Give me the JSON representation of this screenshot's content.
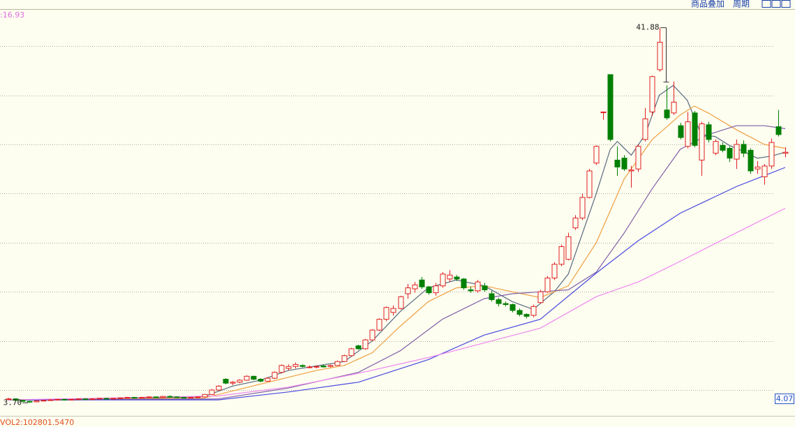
{
  "chart_data": {
    "type": "candlestick",
    "toolbar": [
      "商品叠加",
      "周期"
    ],
    "ma_label": ":16.93",
    "ylim": [
      2.8,
      43.7
    ],
    "gridlines": [
      5,
      10,
      15,
      20,
      25,
      30,
      35,
      40
    ],
    "grid": true,
    "up_color": "#e02020",
    "down_color": "#008000",
    "candles": [
      [
        4.1,
        4.2,
        4.0,
        4.1
      ],
      [
        4.1,
        4.15,
        3.9,
        3.95
      ],
      [
        3.95,
        4.0,
        3.8,
        3.85
      ],
      [
        3.85,
        3.9,
        3.7,
        3.8
      ],
      [
        3.8,
        3.95,
        3.75,
        3.9
      ],
      [
        3.9,
        4.0,
        3.85,
        3.95
      ],
      [
        3.95,
        4.05,
        3.9,
        4.0
      ],
      [
        4.0,
        4.1,
        3.95,
        4.05
      ],
      [
        4.05,
        4.1,
        3.95,
        4.0
      ],
      [
        4.0,
        4.1,
        3.95,
        4.05
      ],
      [
        4.05,
        4.15,
        4.0,
        4.1
      ],
      [
        4.1,
        4.15,
        4.0,
        4.05
      ],
      [
        4.05,
        4.15,
        4.0,
        4.1
      ],
      [
        4.1,
        4.2,
        4.05,
        4.15
      ],
      [
        4.15,
        4.2,
        4.05,
        4.1
      ],
      [
        4.1,
        4.2,
        4.05,
        4.15
      ],
      [
        4.15,
        4.25,
        4.1,
        4.2
      ],
      [
        4.2,
        4.3,
        4.15,
        4.25
      ],
      [
        4.25,
        4.3,
        4.15,
        4.2
      ],
      [
        4.2,
        4.3,
        4.15,
        4.25
      ],
      [
        4.25,
        4.35,
        4.2,
        4.3
      ],
      [
        4.3,
        4.35,
        4.2,
        4.25
      ],
      [
        4.25,
        4.4,
        4.2,
        4.35
      ],
      [
        4.35,
        4.45,
        4.25,
        4.3
      ],
      [
        4.3,
        4.35,
        4.2,
        4.25
      ],
      [
        4.25,
        4.3,
        4.15,
        4.2
      ],
      [
        4.2,
        4.3,
        4.15,
        4.25
      ],
      [
        4.25,
        4.35,
        4.2,
        4.3
      ],
      [
        4.3,
        4.6,
        4.25,
        4.55
      ],
      [
        4.55,
        5.1,
        4.5,
        5.0
      ],
      [
        5.0,
        5.5,
        4.95,
        5.4
      ],
      [
        6.1,
        6.2,
        5.6,
        5.7
      ],
      [
        5.7,
        5.9,
        5.5,
        5.8
      ],
      [
        5.8,
        6.1,
        5.7,
        6.0
      ],
      [
        6.0,
        6.5,
        5.95,
        6.4
      ],
      [
        6.4,
        6.45,
        6.0,
        6.1
      ],
      [
        6.1,
        6.2,
        5.8,
        5.9
      ],
      [
        5.9,
        6.3,
        5.85,
        6.2
      ],
      [
        6.2,
        6.9,
        6.1,
        6.8
      ],
      [
        6.8,
        7.6,
        6.7,
        7.5
      ],
      [
        7.2,
        7.6,
        7.0,
        7.4
      ],
      [
        7.4,
        7.8,
        7.2,
        7.6
      ],
      [
        7.5,
        7.6,
        7.3,
        7.4
      ],
      [
        7.3,
        7.5,
        7.2,
        7.35
      ],
      [
        7.35,
        7.5,
        7.2,
        7.4
      ],
      [
        7.45,
        7.6,
        7.3,
        7.35
      ],
      [
        7.4,
        7.6,
        7.3,
        7.5
      ],
      [
        7.5,
        8.0,
        7.45,
        7.9
      ],
      [
        7.9,
        8.6,
        7.85,
        8.5
      ],
      [
        8.5,
        9.3,
        8.4,
        9.2
      ],
      [
        9.5,
        9.6,
        9.1,
        9.2
      ],
      [
        9.2,
        10.2,
        9.1,
        10.1
      ],
      [
        10.1,
        11.2,
        10.0,
        11.1
      ],
      [
        11.1,
        12.3,
        11.0,
        12.2
      ],
      [
        12.2,
        13.5,
        12.0,
        13.4
      ],
      [
        12.9,
        13.6,
        12.6,
        13.3
      ],
      [
        13.3,
        14.6,
        13.2,
        14.5
      ],
      [
        14.8,
        15.8,
        14.3,
        15.4
      ],
      [
        15.3,
        16.0,
        14.9,
        15.7
      ],
      [
        16.2,
        16.5,
        15.3,
        15.5
      ],
      [
        15.5,
        15.6,
        14.7,
        14.9
      ],
      [
        14.9,
        15.9,
        14.6,
        15.6
      ],
      [
        15.6,
        17.0,
        15.4,
        16.8
      ],
      [
        16.3,
        17.2,
        16.0,
        16.7
      ],
      [
        16.5,
        16.7,
        16.1,
        16.3
      ],
      [
        16.3,
        16.4,
        15.2,
        15.4
      ],
      [
        15.2,
        15.5,
        14.9,
        15.1
      ],
      [
        15.1,
        16.2,
        14.9,
        16.0
      ],
      [
        15.6,
        15.9,
        15.0,
        15.2
      ],
      [
        14.8,
        15.1,
        14.0,
        14.2
      ],
      [
        14.2,
        14.4,
        13.5,
        13.8
      ],
      [
        13.8,
        14.0,
        13.5,
        13.7
      ],
      [
        13.7,
        13.8,
        12.9,
        13.1
      ],
      [
        13.1,
        13.3,
        12.5,
        12.7
      ],
      [
        12.7,
        12.8,
        12.3,
        12.5
      ],
      [
        12.6,
        13.7,
        12.4,
        13.5
      ],
      [
        13.9,
        15.2,
        13.8,
        15.0
      ],
      [
        15.0,
        16.6,
        14.9,
        16.4
      ],
      [
        16.4,
        18.0,
        16.2,
        17.8
      ],
      [
        17.8,
        19.8,
        17.6,
        19.6
      ],
      [
        18.3,
        21.0,
        18.2,
        20.6
      ],
      [
        21.5,
        22.8,
        21.3,
        22.5
      ],
      [
        22.5,
        25.0,
        22.3,
        24.6
      ],
      [
        24.6,
        27.5,
        24.5,
        27.3
      ],
      [
        28.1,
        29.9,
        27.9,
        29.8
      ],
      [
        33.3,
        33.3,
        32.5,
        33.3
      ],
      [
        37.1,
        37.1,
        30.3,
        30.5
      ],
      [
        28.4,
        29.8,
        26.8,
        27.7
      ],
      [
        28.6,
        28.9,
        27.3,
        27.5
      ],
      [
        27.3,
        27.8,
        25.6,
        27.4
      ],
      [
        27.5,
        30.0,
        27.2,
        29.8
      ],
      [
        30.5,
        33.7,
        30.3,
        32.6
      ],
      [
        33.3,
        37.0,
        32.9,
        36.9
      ],
      [
        37.6,
        41.88,
        37.4,
        40.4
      ],
      [
        33.5,
        36.0,
        32.5,
        32.7
      ],
      [
        33.2,
        36.4,
        33.0,
        34.3
      ],
      [
        31.9,
        32.2,
        30.5,
        30.7
      ],
      [
        29.8,
        33.3,
        29.6,
        32.3
      ],
      [
        33.2,
        33.4,
        29.7,
        29.9
      ],
      [
        28.4,
        32.3,
        26.8,
        32.1
      ],
      [
        32.0,
        32.3,
        30.2,
        30.5
      ],
      [
        29.1,
        30.5,
        28.9,
        30.3
      ],
      [
        29.9,
        30.2,
        29.2,
        29.4
      ],
      [
        29.6,
        29.8,
        28.2,
        28.6
      ],
      [
        28.5,
        30.5,
        27.5,
        30.0
      ],
      [
        30.0,
        30.4,
        28.7,
        29.1
      ],
      [
        29.4,
        29.6,
        27.0,
        27.3
      ],
      [
        27.5,
        28.3,
        27.0,
        27.7
      ],
      [
        26.7,
        28.0,
        25.9,
        27.8
      ],
      [
        27.8,
        30.6,
        27.5,
        30.2
      ],
      [
        31.8,
        33.5,
        30.8,
        31.0
      ],
      [
        29.1,
        29.7,
        28.7,
        29.2
      ]
    ],
    "series": [
      {
        "color": "#5a6a80",
        "x": [
          0,
          10,
          20,
          28,
          32,
          36,
          40,
          44,
          48,
          52,
          56,
          60,
          64,
          68,
          72,
          75,
          78,
          80,
          84,
          86,
          87,
          89,
          91,
          93,
          95,
          97,
          99,
          101,
          103,
          105,
          107,
          109,
          111
        ],
        "values": [
          4.0,
          4.0,
          4.2,
          4.35,
          5.4,
          6.0,
          7.0,
          7.45,
          7.9,
          10.0,
          13.0,
          15.4,
          16.2,
          15.6,
          14.0,
          13.2,
          15.0,
          16.8,
          25.0,
          29.5,
          30.3,
          28.9,
          31.0,
          35.0,
          36.0,
          34.5,
          31.0,
          30.8,
          29.9,
          29.3,
          28.6,
          28.8,
          29.2
        ]
      },
      {
        "color": "#f0a040",
        "x": [
          0,
          28,
          36,
          44,
          48,
          52,
          56,
          60,
          64,
          68,
          72,
          76,
          80,
          84,
          88,
          92,
          96,
          98,
          100,
          104,
          108,
          111
        ],
        "values": [
          4.0,
          4.2,
          5.6,
          7.0,
          7.5,
          8.8,
          11.5,
          14.0,
          15.4,
          15.6,
          15.0,
          14.4,
          15.6,
          20.0,
          26.5,
          30.5,
          33.0,
          33.9,
          33.2,
          31.5,
          30.0,
          29.6
        ]
      },
      {
        "color": "#8060a8",
        "x": [
          0,
          30,
          40,
          50,
          56,
          62,
          68,
          72,
          76,
          80,
          84,
          88,
          92,
          96,
          100,
          104,
          108,
          111
        ],
        "values": [
          4.0,
          4.1,
          5.2,
          6.8,
          9.0,
          12.2,
          14.3,
          14.8,
          15.0,
          15.2,
          17.0,
          21.0,
          25.5,
          29.5,
          31.0,
          31.9,
          31.9,
          31.6
        ]
      },
      {
        "color": "#4848e0",
        "x": [
          0,
          30,
          40,
          50,
          60,
          68,
          76,
          84,
          90,
          96,
          104,
          111
        ],
        "values": [
          4.0,
          4.0,
          4.8,
          5.8,
          8.1,
          10.6,
          12.2,
          16.9,
          20.2,
          23.0,
          25.7,
          27.65
        ]
      },
      {
        "color": "#ee88ee",
        "x": [
          0,
          30,
          40,
          50,
          60,
          68,
          76,
          84,
          90,
          96,
          104,
          111
        ],
        "values": [
          4.0,
          4.4,
          5.3,
          6.7,
          8.3,
          9.8,
          11.3,
          14.5,
          16.0,
          18.1,
          21.0,
          23.5
        ]
      }
    ],
    "max_marker": 41.88,
    "min_marker": {
      "value": 3.7,
      "label": "3.70"
    },
    "price_box": 4.07,
    "volume_label": "VOL2:102801.5470"
  }
}
